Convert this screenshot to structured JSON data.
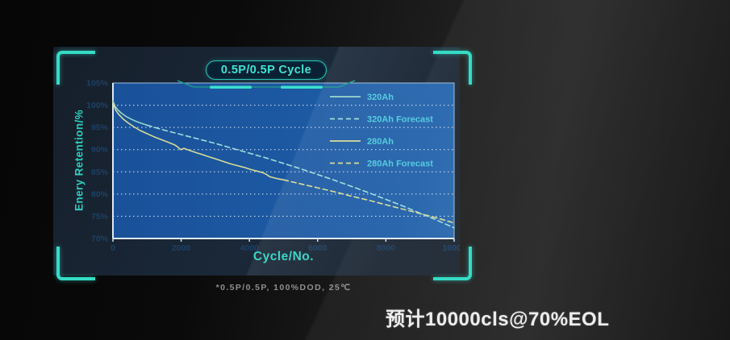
{
  "panel": {
    "title": "0.5P/0.5P Cycle"
  },
  "footnote": "*0.5P/0.5P, 100%DOD, 25℃",
  "conclusion": "预计10000cls@70%EOL",
  "colors": {
    "accent_teal": "#35dcc6",
    "plot_blue": "#1d5aa4",
    "legend_text": "#4ecadf",
    "tick_text": "#1d4167",
    "gridline": "#ffffff"
  },
  "chart_data": {
    "type": "line",
    "title": "0.5P/0.5P Cycle",
    "xlabel": "Cycle/No.",
    "ylabel": "Enery Retention/%",
    "xlim": [
      0,
      10000
    ],
    "ylim": [
      70,
      105
    ],
    "x_ticks": [
      0,
      2000,
      4000,
      6000,
      8000,
      10000
    ],
    "y_ticks": [
      "105%",
      "100%",
      "95%",
      "90%",
      "85%",
      "80%",
      "75%",
      "70%"
    ],
    "gridlines": [
      100,
      95,
      90,
      85,
      80,
      75
    ],
    "grid": "horizontal-dashed",
    "legend_position": "top-right-inside",
    "series": [
      {
        "name": "320Ah",
        "style": "solid",
        "color": "#96d7c6",
        "points": [
          [
            0,
            101
          ],
          [
            60,
            99.8
          ],
          [
            150,
            98.9
          ],
          [
            250,
            98.2
          ],
          [
            400,
            97.4
          ],
          [
            550,
            96.8
          ],
          [
            700,
            96.3
          ],
          [
            850,
            95.9
          ],
          [
            1000,
            95.5
          ]
        ]
      },
      {
        "name": "320Ah Forecast",
        "style": "dashed",
        "color": "#9fdcda",
        "points": [
          [
            1000,
            95.5
          ],
          [
            1500,
            94.4
          ],
          [
            2000,
            93.4
          ],
          [
            2500,
            92.4
          ],
          [
            3000,
            91.4
          ],
          [
            3500,
            90.3
          ],
          [
            4000,
            89.2
          ],
          [
            4500,
            88.1
          ],
          [
            5000,
            86.9
          ],
          [
            5500,
            85.7
          ],
          [
            6000,
            84.4
          ],
          [
            6500,
            83.1
          ],
          [
            7000,
            81.7
          ],
          [
            7500,
            80.3
          ],
          [
            8000,
            78.8
          ],
          [
            8500,
            77.3
          ],
          [
            9000,
            75.7
          ],
          [
            9500,
            74.1
          ],
          [
            10000,
            72.4
          ]
        ]
      },
      {
        "name": "280Ah",
        "style": "solid",
        "color": "#d7db97",
        "points": [
          [
            0,
            100.6
          ],
          [
            80,
            98.9
          ],
          [
            160,
            98
          ],
          [
            300,
            96.9
          ],
          [
            450,
            96
          ],
          [
            600,
            95.2
          ],
          [
            800,
            94.3
          ],
          [
            1000,
            93.6
          ],
          [
            1200,
            92.9
          ],
          [
            1400,
            92.3
          ],
          [
            1600,
            91.7
          ],
          [
            1800,
            91.1
          ],
          [
            1900,
            90.6
          ],
          [
            1980,
            90
          ],
          [
            2080,
            90.3
          ],
          [
            2250,
            89.8
          ],
          [
            2450,
            89.3
          ],
          [
            2650,
            88.8
          ],
          [
            2850,
            88.3
          ],
          [
            3050,
            87.8
          ],
          [
            3250,
            87.3
          ],
          [
            3450,
            86.8
          ],
          [
            3650,
            86.4
          ],
          [
            3850,
            86
          ],
          [
            4050,
            85.5
          ],
          [
            4250,
            85.1
          ],
          [
            4400,
            84.8
          ],
          [
            4500,
            84.4
          ],
          [
            4600,
            83.9
          ],
          [
            4700,
            83.7
          ],
          [
            4850,
            83.4
          ],
          [
            5000,
            83.2
          ]
        ]
      },
      {
        "name": "280Ah Forecast",
        "style": "dashed",
        "color": "#d7db97",
        "points": [
          [
            5000,
            83.2
          ],
          [
            5500,
            82.3
          ],
          [
            6000,
            81.4
          ],
          [
            6500,
            80.5
          ],
          [
            7000,
            79.5
          ],
          [
            7500,
            78.6
          ],
          [
            8000,
            77.6
          ],
          [
            8500,
            76.6
          ],
          [
            9000,
            75.6
          ],
          [
            9500,
            74.6
          ],
          [
            10000,
            73.5
          ]
        ]
      }
    ]
  }
}
